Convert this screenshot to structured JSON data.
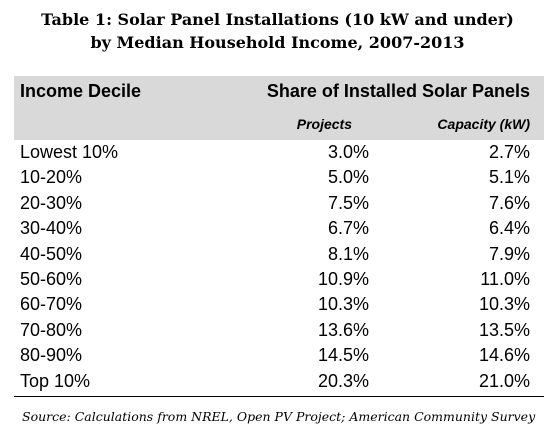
{
  "title": {
    "line1": "Table 1:  Solar Panel Installations (10 kW and under)",
    "line2": "by Median Household Income, 2007-2013"
  },
  "header": {
    "col1": "Income Decile",
    "group": "Share of Installed Solar Panels",
    "col2": "Projects",
    "col3": "Capacity (kW)"
  },
  "rows": [
    {
      "decile": "Lowest 10%",
      "projects": "3.0%",
      "capacity": "2.7%"
    },
    {
      "decile": "10-20%",
      "projects": "5.0%",
      "capacity": "5.1%"
    },
    {
      "decile": "20-30%",
      "projects": "7.5%",
      "capacity": "7.6%"
    },
    {
      "decile": "30-40%",
      "projects": "6.7%",
      "capacity": "6.4%"
    },
    {
      "decile": "40-50%",
      "projects": "8.1%",
      "capacity": "7.9%"
    },
    {
      "decile": "50-60%",
      "projects": "10.9%",
      "capacity": "11.0%"
    },
    {
      "decile": "60-70%",
      "projects": "10.3%",
      "capacity": "10.3%"
    },
    {
      "decile": "70-80%",
      "projects": "13.6%",
      "capacity": "13.5%"
    },
    {
      "decile": "80-90%",
      "projects": "14.5%",
      "capacity": "14.6%"
    },
    {
      "decile": "Top 10%",
      "projects": "20.3%",
      "capacity": "21.0%"
    }
  ],
  "source": "Source:  Calculations from NREL, Open PV Project; American Community Survey",
  "colors": {
    "header_band": "#d9d9d9",
    "text": "#000000"
  }
}
